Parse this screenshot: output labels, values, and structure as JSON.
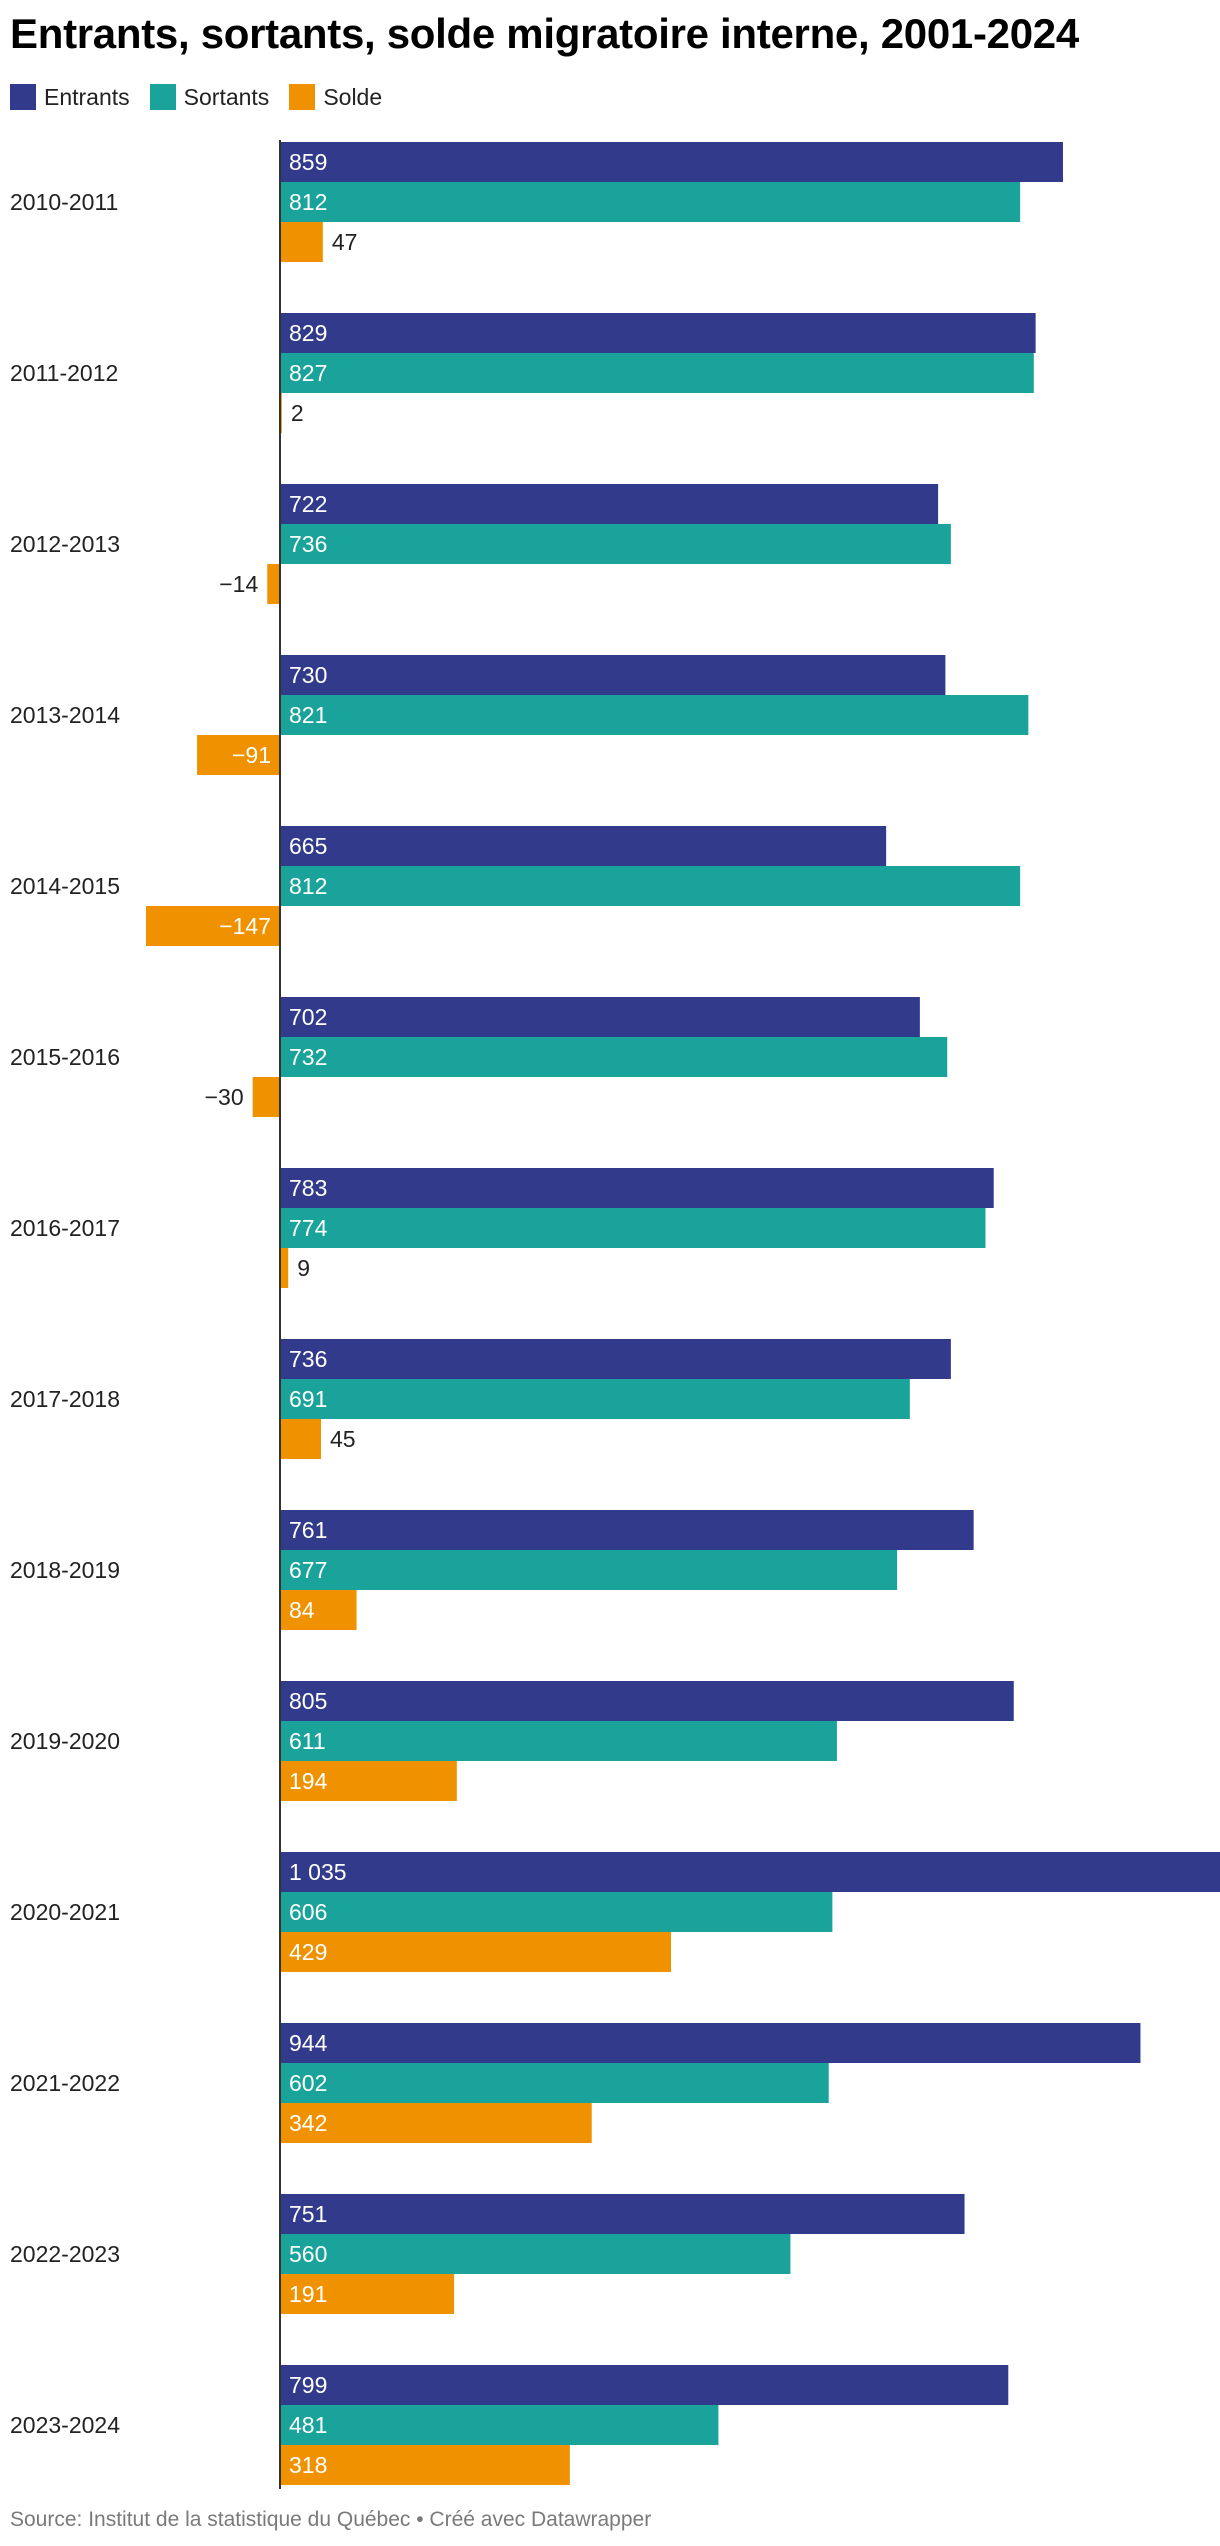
{
  "title": "Entrants, sortants, solde migratoire interne, 2001-2024",
  "footer": "Source: Institut de la statistique du Québec • Créé avec Datawrapper",
  "chart_data": {
    "type": "bar",
    "orientation": "horizontal",
    "title": "Entrants, sortants, solde migratoire interne, 2001-2024",
    "categories": [
      "2010-2011",
      "2011-2012",
      "2012-2013",
      "2013-2014",
      "2014-2015",
      "2015-2016",
      "2016-2017",
      "2017-2018",
      "2018-2019",
      "2019-2020",
      "2020-2021",
      "2021-2022",
      "2022-2023",
      "2023-2024"
    ],
    "series": [
      {
        "name": "Entrants",
        "color": "#323a8b",
        "values": [
          859,
          829,
          722,
          730,
          665,
          702,
          783,
          736,
          761,
          805,
          1035,
          944,
          751,
          799
        ],
        "labels": [
          "859",
          "829",
          "722",
          "730",
          "665",
          "702",
          "783",
          "736",
          "761",
          "805",
          "1 035",
          "944",
          "751",
          "799"
        ]
      },
      {
        "name": "Sortants",
        "color": "#1aa39a",
        "values": [
          812,
          827,
          736,
          821,
          812,
          732,
          774,
          691,
          677,
          611,
          606,
          602,
          560,
          481
        ],
        "labels": [
          "812",
          "827",
          "736",
          "821",
          "812",
          "732",
          "774",
          "691",
          "677",
          "611",
          "606",
          "602",
          "560",
          "481"
        ]
      },
      {
        "name": "Solde",
        "color": "#f09200",
        "values": [
          47,
          2,
          -14,
          -91,
          -147,
          -30,
          9,
          45,
          84,
          194,
          429,
          342,
          191,
          318
        ],
        "labels": [
          "47",
          "2",
          "−14",
          "−91",
          "−147",
          "−30",
          "9",
          "45",
          "84",
          "194",
          "429",
          "342",
          "191",
          "318"
        ]
      }
    ],
    "xlim": [
      -147,
      1035
    ],
    "grid": false,
    "legend_position": "top-left"
  }
}
